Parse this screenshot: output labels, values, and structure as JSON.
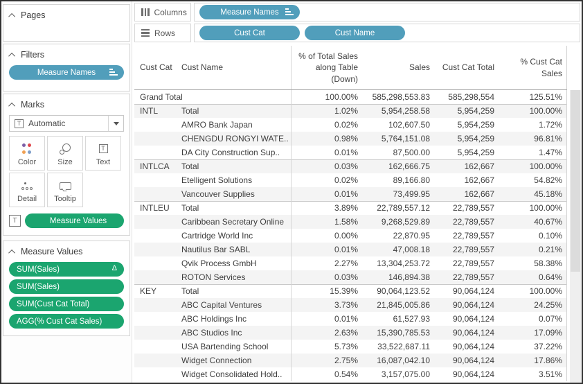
{
  "colors": {
    "pill_blue": "#519EBB",
    "pill_green": "#1BA56F"
  },
  "sidebar": {
    "pages": {
      "label": "Pages"
    },
    "filters": {
      "label": "Filters",
      "pill": "Measure Names"
    },
    "marks": {
      "label": "Marks",
      "mark_type": "Automatic",
      "buttons": {
        "color": "Color",
        "size": "Size",
        "text": "Text",
        "detail": "Detail",
        "tooltip": "Tooltip"
      },
      "encoding_pill": "Measure Values"
    },
    "measure_values": {
      "label": "Measure Values",
      "pills": [
        {
          "label": "SUM(Sales)",
          "delta": "Δ"
        },
        {
          "label": "SUM(Sales)"
        },
        {
          "label": "SUM(Cust Cat Total)"
        },
        {
          "label": "AGG(% Cust Cat Sales)"
        }
      ]
    }
  },
  "shelves": {
    "columns": {
      "label": "Columns",
      "pills": [
        {
          "label": "Measure Names"
        }
      ]
    },
    "rows": {
      "label": "Rows",
      "pills": [
        {
          "label": "Cust Cat"
        },
        {
          "label": "Cust Name"
        }
      ]
    }
  },
  "table": {
    "headers": [
      {
        "label": "Cust Cat"
      },
      {
        "label": "Cust Name"
      },
      {
        "label": "% of Total Sales\nalong Table\n(Down)"
      },
      {
        "label": "Sales"
      },
      {
        "label": "Cust Cat Total"
      },
      {
        "label": "% Cust Cat\nSales"
      }
    ],
    "rows": [
      {
        "grand_total": true,
        "cust_cat": "Grand Total",
        "cust_name": "",
        "pct_total": "100.00%",
        "sales": "585,298,553.83",
        "cat_total": "585,298,554",
        "pct_cat": "125.51%"
      },
      {
        "section_start": true,
        "cust_cat": "INTL",
        "cust_name": "Total",
        "pct_total": "1.02%",
        "sales": "5,954,258.58",
        "cat_total": "5,954,259",
        "pct_cat": "100.00%"
      },
      {
        "cust_cat": "",
        "cust_name": "AMRO Bank Japan",
        "pct_total": "0.02%",
        "sales": "102,607.50",
        "cat_total": "5,954,259",
        "pct_cat": "1.72%"
      },
      {
        "cust_cat": "",
        "cust_name": "CHENGDU RONGYI WATE..",
        "pct_total": "0.98%",
        "sales": "5,764,151.08",
        "cat_total": "5,954,259",
        "pct_cat": "96.81%"
      },
      {
        "cust_cat": "",
        "cust_name": "DA City Construction Sup..",
        "pct_total": "0.01%",
        "sales": "87,500.00",
        "cat_total": "5,954,259",
        "pct_cat": "1.47%"
      },
      {
        "section_start": true,
        "cust_cat": "INTLCA",
        "cust_name": "Total",
        "pct_total": "0.03%",
        "sales": "162,666.75",
        "cat_total": "162,667",
        "pct_cat": "100.00%"
      },
      {
        "cust_cat": "",
        "cust_name": "Etelligent Solutions",
        "pct_total": "0.02%",
        "sales": "89,166.80",
        "cat_total": "162,667",
        "pct_cat": "54.82%"
      },
      {
        "cust_cat": "",
        "cust_name": "Vancouver Supplies",
        "pct_total": "0.01%",
        "sales": "73,499.95",
        "cat_total": "162,667",
        "pct_cat": "45.18%"
      },
      {
        "section_start": true,
        "cust_cat": "INTLEU",
        "cust_name": "Total",
        "pct_total": "3.89%",
        "sales": "22,789,557.12",
        "cat_total": "22,789,557",
        "pct_cat": "100.00%"
      },
      {
        "cust_cat": "",
        "cust_name": "Caribbean Secretary Online",
        "pct_total": "1.58%",
        "sales": "9,268,529.89",
        "cat_total": "22,789,557",
        "pct_cat": "40.67%"
      },
      {
        "cust_cat": "",
        "cust_name": "Cartridge World Inc",
        "pct_total": "0.00%",
        "sales": "22,870.95",
        "cat_total": "22,789,557",
        "pct_cat": "0.10%"
      },
      {
        "cust_cat": "",
        "cust_name": "Nautilus Bar SABL",
        "pct_total": "0.01%",
        "sales": "47,008.18",
        "cat_total": "22,789,557",
        "pct_cat": "0.21%"
      },
      {
        "cust_cat": "",
        "cust_name": "Qvik Process GmbH",
        "pct_total": "2.27%",
        "sales": "13,304,253.72",
        "cat_total": "22,789,557",
        "pct_cat": "58.38%"
      },
      {
        "cust_cat": "",
        "cust_name": "ROTON Services",
        "pct_total": "0.03%",
        "sales": "146,894.38",
        "cat_total": "22,789,557",
        "pct_cat": "0.64%"
      },
      {
        "section_start": true,
        "cust_cat": "KEY",
        "cust_name": "Total",
        "pct_total": "15.39%",
        "sales": "90,064,123.52",
        "cat_total": "90,064,124",
        "pct_cat": "100.00%"
      },
      {
        "cust_cat": "",
        "cust_name": "ABC Capital Ventures",
        "pct_total": "3.73%",
        "sales": "21,845,005.86",
        "cat_total": "90,064,124",
        "pct_cat": "24.25%"
      },
      {
        "cust_cat": "",
        "cust_name": "ABC Holdings Inc",
        "pct_total": "0.01%",
        "sales": "61,527.93",
        "cat_total": "90,064,124",
        "pct_cat": "0.07%"
      },
      {
        "cust_cat": "",
        "cust_name": "ABC Studios Inc",
        "pct_total": "2.63%",
        "sales": "15,390,785.53",
        "cat_total": "90,064,124",
        "pct_cat": "17.09%"
      },
      {
        "cust_cat": "",
        "cust_name": "USA Bartending School",
        "pct_total": "5.73%",
        "sales": "33,522,687.11",
        "cat_total": "90,064,124",
        "pct_cat": "37.22%"
      },
      {
        "cust_cat": "",
        "cust_name": "Widget Connection",
        "pct_total": "2.75%",
        "sales": "16,087,042.10",
        "cat_total": "90,064,124",
        "pct_cat": "17.86%"
      },
      {
        "cust_cat": "",
        "cust_name": "Widget Consolidated Hold..",
        "pct_total": "0.54%",
        "sales": "3,157,075.00",
        "cat_total": "90,064,124",
        "pct_cat": "3.51%"
      }
    ]
  }
}
